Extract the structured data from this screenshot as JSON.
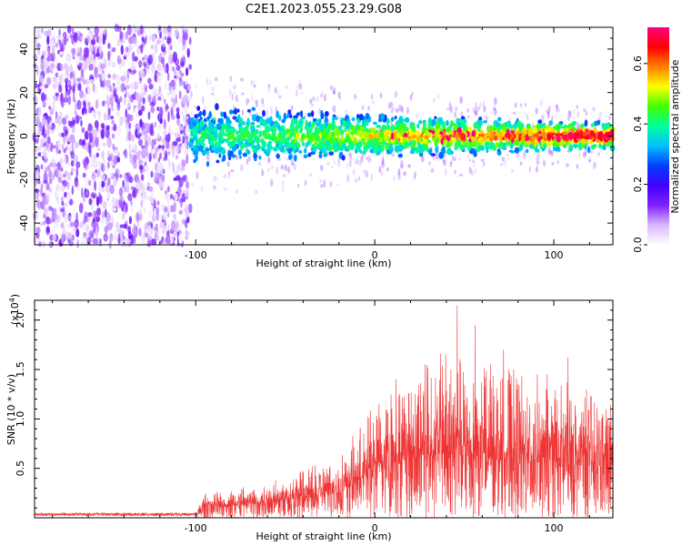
{
  "figure": {
    "title": "C2E1.2023.055.23.29.G08"
  },
  "chart_data": [
    {
      "type": "heatmap",
      "xlabel": "Height of straight line (km)",
      "ylabel": "Frequency (Hz)",
      "xlim": [
        -190,
        133
      ],
      "ylim": [
        -50,
        50
      ],
      "xticks": [
        -100,
        0,
        100
      ],
      "yticks": [
        -40,
        -20,
        0,
        20,
        40
      ],
      "noise_region_x": [
        -190,
        -103
      ],
      "signal_region_x": [
        -103,
        133
      ],
      "signal_band_halfwidth_hz": {
        "at_-100": 11,
        "at_0": 8,
        "at_133": 5
      },
      "signal_center_hz": 0,
      "colorbar": {
        "label": "Normalized spectral amplitude",
        "range": [
          0.0,
          0.72
        ],
        "ticks": [
          0.0,
          0.2,
          0.4,
          0.6
        ],
        "colormap": [
          "#ffffff",
          "#d8b8ff",
          "#8020ff",
          "#4000ff",
          "#0040ff",
          "#00c0ff",
          "#00ffa0",
          "#40ff00",
          "#ffff00",
          "#ff8000",
          "#ff0000",
          "#ff0080"
        ]
      },
      "grid": false
    },
    {
      "type": "line",
      "xlabel": "Height of straight line (km)",
      "ylabel": "SNR (10 * v/v)",
      "y_scale_label": "(x10",
      "y_scale_exp": "4",
      "y_scale_close": ")",
      "xlim": [
        -190,
        133
      ],
      "ylim": [
        0,
        2.2
      ],
      "xticks": [
        -100,
        0,
        100
      ],
      "yticks": [
        0.5,
        1.0,
        1.5,
        2.0
      ],
      "ytick_labels": [
        "0.5",
        "1.0",
        "1.5",
        "2.0"
      ],
      "color": "#ee3333",
      "grid": false,
      "envelope": [
        {
          "x": -190,
          "mean": 0.02,
          "max": 0.05
        },
        {
          "x": -100,
          "mean": 0.02,
          "max": 0.05
        },
        {
          "x": -95,
          "mean": 0.1,
          "max": 0.25
        },
        {
          "x": -60,
          "mean": 0.15,
          "max": 0.35
        },
        {
          "x": -40,
          "mean": 0.2,
          "max": 0.5
        },
        {
          "x": -20,
          "mean": 0.25,
          "max": 0.6
        },
        {
          "x": -15,
          "mean": 0.3,
          "max": 0.75
        },
        {
          "x": 0,
          "mean": 0.5,
          "max": 1.2
        },
        {
          "x": 20,
          "mean": 0.6,
          "max": 1.5
        },
        {
          "x": 40,
          "mean": 0.65,
          "max": 1.7
        },
        {
          "x": 60,
          "mean": 0.6,
          "max": 1.6
        },
        {
          "x": 80,
          "mean": 0.55,
          "max": 1.5
        },
        {
          "x": 100,
          "mean": 0.55,
          "max": 1.45
        },
        {
          "x": 133,
          "mean": 0.5,
          "max": 1.2
        }
      ],
      "peaks": [
        {
          "x": 46,
          "y": 2.15
        },
        {
          "x": 56,
          "y": 1.95
        },
        {
          "x": 72,
          "y": 1.7
        },
        {
          "x": 108,
          "y": 1.62
        },
        {
          "x": 28,
          "y": 1.55
        },
        {
          "x": 12,
          "y": 1.4
        }
      ]
    }
  ]
}
